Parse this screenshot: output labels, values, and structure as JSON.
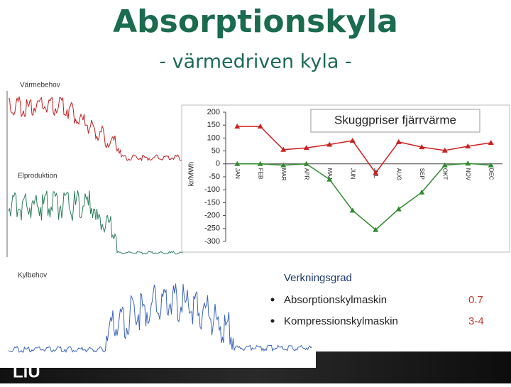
{
  "header": {
    "title": "Absorptionskyla",
    "subtitle": "- värmedriven kyla -"
  },
  "panels": [
    "Värmebehov",
    "Elproduktion",
    "Kylbehov"
  ],
  "chart_data": {
    "type": "line",
    "title": "Skuggpriser fjärrvärme",
    "y_label": "kr/MWh",
    "categories": [
      "JAN",
      "FEB",
      "MAR",
      "APR",
      "MAJ",
      "JUN",
      "JUL",
      "AUG",
      "SEP",
      "OKT",
      "NOV",
      "DEC"
    ],
    "series": [
      {
        "color": "#cc1f1f",
        "values": [
          145,
          145,
          55,
          62,
          75,
          90,
          -35,
          85,
          65,
          52,
          68,
          82
        ]
      },
      {
        "color": "#2e8b2e",
        "values": [
          0,
          0,
          -5,
          0,
          -60,
          -180,
          -255,
          -175,
          -110,
          -5,
          2,
          -5
        ]
      }
    ],
    "ylim": [
      -300,
      200
    ],
    "yticks": [
      -300,
      -250,
      -200,
      -150,
      -100,
      -50,
      0,
      50,
      100,
      150,
      200
    ]
  },
  "efficiency": {
    "heading": "Verkningsgrad",
    "items": [
      {
        "name": "Absorptionskylmaskin",
        "value": "0.7"
      },
      {
        "name": "Kompressionskylmaskin",
        "value": "3-4"
      }
    ]
  },
  "logo": "LiU"
}
